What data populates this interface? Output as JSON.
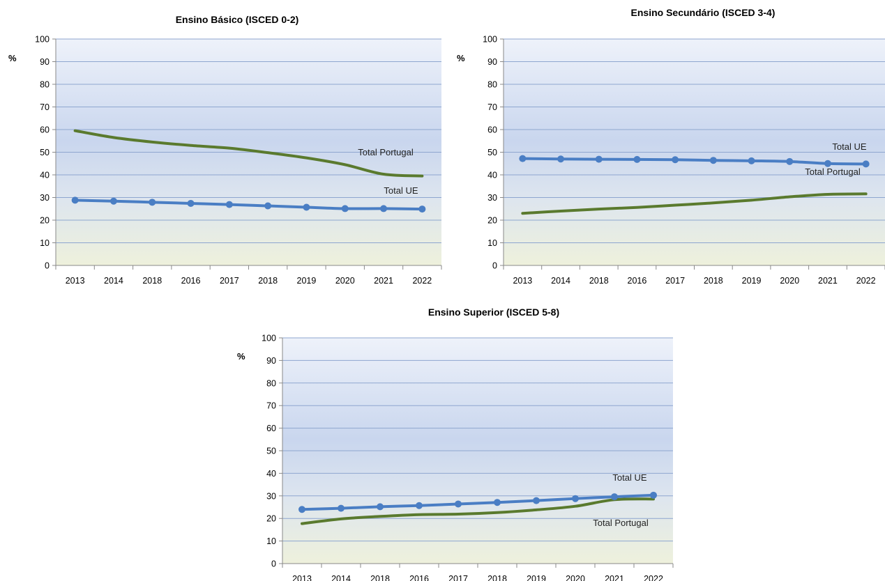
{
  "chart_data": [
    {
      "type": "line",
      "title": "Ensino Básico (ISCED 0-2)",
      "ylabel": "%",
      "ylim": [
        0,
        100
      ],
      "yticks": [
        "0",
        "10",
        "20",
        "30",
        "40",
        "50",
        "60",
        "70",
        "80",
        "90",
        "100"
      ],
      "categories": [
        "2013",
        "2014",
        "2018",
        "2016",
        "2017",
        "2018",
        "2019",
        "2020",
        "2021",
        "2022"
      ],
      "series": [
        {
          "name": "Total Portugal",
          "color": "#5a7a2e",
          "markers": false,
          "values": [
            59.5,
            56.5,
            54.5,
            53.0,
            51.8,
            49.8,
            47.5,
            44.5,
            40.3,
            39.5
          ]
        },
        {
          "name": "Total UE",
          "color": "#4a7ec4",
          "markers": true,
          "values": [
            28.8,
            28.4,
            27.9,
            27.4,
            26.9,
            26.3,
            25.7,
            25.1,
            25.1,
            24.9
          ]
        }
      ],
      "grid": true
    },
    {
      "type": "line",
      "title": "Ensino Secundário (ISCED 3-4)",
      "ylabel": "%",
      "ylim": [
        0,
        100
      ],
      "yticks": [
        "0",
        "10",
        "20",
        "30",
        "40",
        "50",
        "60",
        "70",
        "80",
        "90",
        "100"
      ],
      "categories": [
        "2013",
        "2014",
        "2018",
        "2016",
        "2017",
        "2018",
        "2019",
        "2020",
        "2021",
        "2022"
      ],
      "series": [
        {
          "name": "Total Portugal",
          "color": "#5a7a2e",
          "markers": false,
          "values": [
            23.0,
            24.0,
            24.9,
            25.6,
            26.6,
            27.6,
            28.8,
            30.3,
            31.4,
            31.6
          ]
        },
        {
          "name": "Total UE",
          "color": "#4a7ec4",
          "markers": true,
          "values": [
            47.2,
            47.0,
            46.9,
            46.8,
            46.7,
            46.4,
            46.2,
            45.9,
            45.0,
            44.8
          ]
        }
      ],
      "grid": true
    },
    {
      "type": "line",
      "title": "Ensino Superior (ISCED 5-8)",
      "ylabel": "%",
      "ylim": [
        0,
        100
      ],
      "yticks": [
        "0",
        "10",
        "20",
        "30",
        "40",
        "50",
        "60",
        "70",
        "80",
        "90",
        "100"
      ],
      "categories": [
        "2013",
        "2014",
        "2018",
        "2016",
        "2017",
        "2018",
        "2019",
        "2020",
        "2021",
        "2022"
      ],
      "series": [
        {
          "name": "Total Portugal",
          "color": "#5a7a2e",
          "markers": false,
          "values": [
            17.7,
            19.8,
            20.9,
            21.7,
            21.9,
            22.6,
            23.8,
            25.4,
            28.3,
            28.6
          ]
        },
        {
          "name": "Total UE",
          "color": "#4a7ec4",
          "markers": true,
          "values": [
            24.0,
            24.5,
            25.2,
            25.7,
            26.4,
            27.1,
            27.9,
            28.8,
            29.6,
            30.3
          ]
        }
      ],
      "grid": true
    }
  ]
}
